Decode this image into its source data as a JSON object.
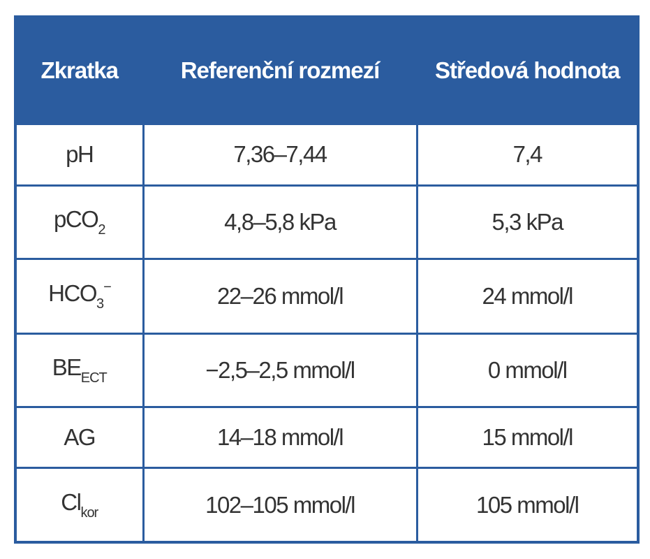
{
  "table": {
    "header": [
      "Zkratka",
      "Referenční rozmezí",
      "Středová hodnota"
    ],
    "rows": [
      [
        {
          "base": "pH"
        },
        "7,36–7,44",
        "7,4"
      ],
      [
        {
          "base": "pCO",
          "sub": "2"
        },
        "4,8–5,8 kPa",
        "5,3 kPa"
      ],
      [
        {
          "base": "HCO",
          "sub": "3",
          "sup": "−"
        },
        "22–26 mmol/l",
        "24 mmol/l"
      ],
      [
        {
          "base": "BE",
          "sub": "ECT"
        },
        "−2,5–2,5 mmol/l",
        "0 mmol/l"
      ],
      [
        {
          "base": "AG"
        },
        "14–18 mmol/l",
        "15 mmol/l"
      ],
      [
        {
          "base": "Cl",
          "sub": "kor"
        },
        "102–105 mmol/l",
        "105 mmol/l"
      ]
    ]
  }
}
